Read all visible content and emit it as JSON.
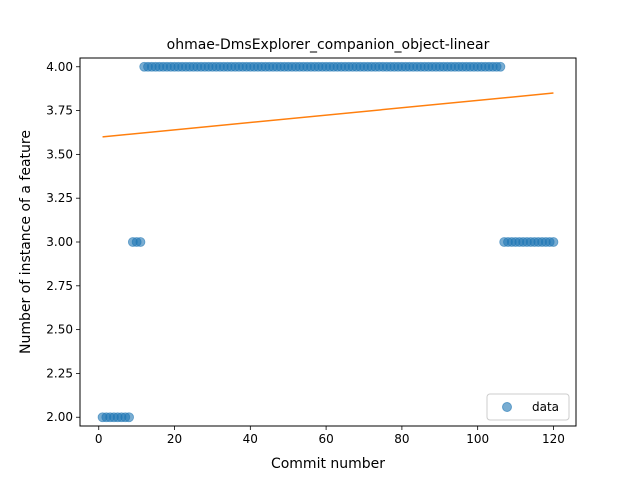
{
  "chart_data": {
    "type": "scatter",
    "title": "ohmae-DmsExplorer_companion_object-linear",
    "xlabel": "Commit number",
    "ylabel": "Number of instance of a feature",
    "xlim": [
      -4.95,
      125.95
    ],
    "ylim": [
      1.95,
      4.05
    ],
    "xticks": [
      0,
      20,
      40,
      60,
      80,
      100,
      120
    ],
    "yticks": [
      2.0,
      2.25,
      2.5,
      2.75,
      3.0,
      3.25,
      3.5,
      3.75,
      4.0
    ],
    "ytick_labels": [
      "2.00",
      "2.25",
      "2.50",
      "2.75",
      "3.00",
      "3.25",
      "3.50",
      "3.75",
      "4.00"
    ],
    "grid": false,
    "legend": {
      "position": "lower-right",
      "entries": [
        "data"
      ]
    },
    "series": [
      {
        "name": "data",
        "kind": "scatter",
        "color": "#1f77b4",
        "segments": [
          {
            "x_start": 1,
            "x_end": 8,
            "y": 2
          },
          {
            "x_start": 9,
            "x_end": 11,
            "y": 3
          },
          {
            "x_start": 12,
            "x_end": 106,
            "y": 4
          },
          {
            "x_start": 107,
            "x_end": 120,
            "y": 3
          }
        ]
      },
      {
        "name": "",
        "kind": "line",
        "color": "#ff7f0e",
        "x": [
          1,
          120
        ],
        "y": [
          3.6,
          3.85
        ]
      }
    ]
  }
}
